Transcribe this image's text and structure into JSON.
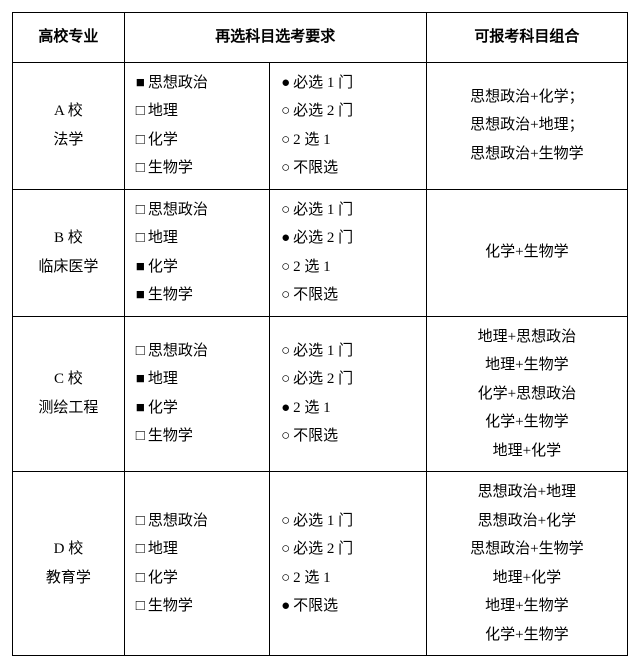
{
  "headers": {
    "major": "高校专业",
    "requirement": "再选科目选考要求",
    "combos": "可报考科目组合"
  },
  "glyphs": {
    "filled_square": "■",
    "empty_square": "□",
    "filled_circle": "●",
    "empty_circle": "○"
  },
  "subject_labels": [
    "思想政治",
    "地理",
    "化学",
    "生物学"
  ],
  "rule_labels": [
    "必选 1 门",
    "必选 2 门",
    "2 选 1",
    "不限选"
  ],
  "rows": [
    {
      "school": "A 校",
      "major": "法学",
      "subjects_checked": [
        true,
        false,
        false,
        false
      ],
      "rule_selected_index": 0,
      "combos": [
        "思想政治+化学；",
        "思想政治+地理；",
        "思想政治+生物学"
      ]
    },
    {
      "school": "B 校",
      "major": "临床医学",
      "subjects_checked": [
        false,
        false,
        true,
        true
      ],
      "rule_selected_index": 1,
      "combos": [
        "化学+生物学"
      ]
    },
    {
      "school": "C 校",
      "major": "测绘工程",
      "subjects_checked": [
        false,
        true,
        true,
        false
      ],
      "rule_selected_index": 2,
      "combos": [
        "地理+思想政治",
        "地理+生物学",
        "化学+思想政治",
        "化学+生物学",
        "地理+化学"
      ]
    },
    {
      "school": "D 校",
      "major": "教育学",
      "subjects_checked": [
        false,
        false,
        false,
        false
      ],
      "rule_selected_index": 3,
      "combos": [
        "思想政治+地理",
        "思想政治+化学",
        "思想政治+生物学",
        "地理+化学",
        "地理+生物学",
        "化学+生物学"
      ]
    }
  ]
}
